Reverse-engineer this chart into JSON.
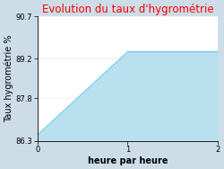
{
  "title": "Evolution du taux d'hygrométrie",
  "title_color": "#ff0000",
  "xlabel": "heure par heure",
  "ylabel": "Taux hygrométrie %",
  "x": [
    0,
    1,
    2
  ],
  "y": [
    86.5,
    89.45,
    89.45
  ],
  "fill_color": "#b8e0ee",
  "fill_alpha": 1.0,
  "line_color": "#5bc8e8",
  "line_width": 0.8,
  "ylim": [
    86.3,
    90.7
  ],
  "xlim": [
    0,
    2
  ],
  "yticks": [
    86.3,
    87.8,
    89.2,
    90.7
  ],
  "xticks": [
    0,
    1,
    2
  ],
  "bg_color": "#ccdde8",
  "plot_bg_color": "#ffffff",
  "title_fontsize": 8.5,
  "label_fontsize": 7,
  "tick_fontsize": 6,
  "grid_color": "#aaaaaa"
}
